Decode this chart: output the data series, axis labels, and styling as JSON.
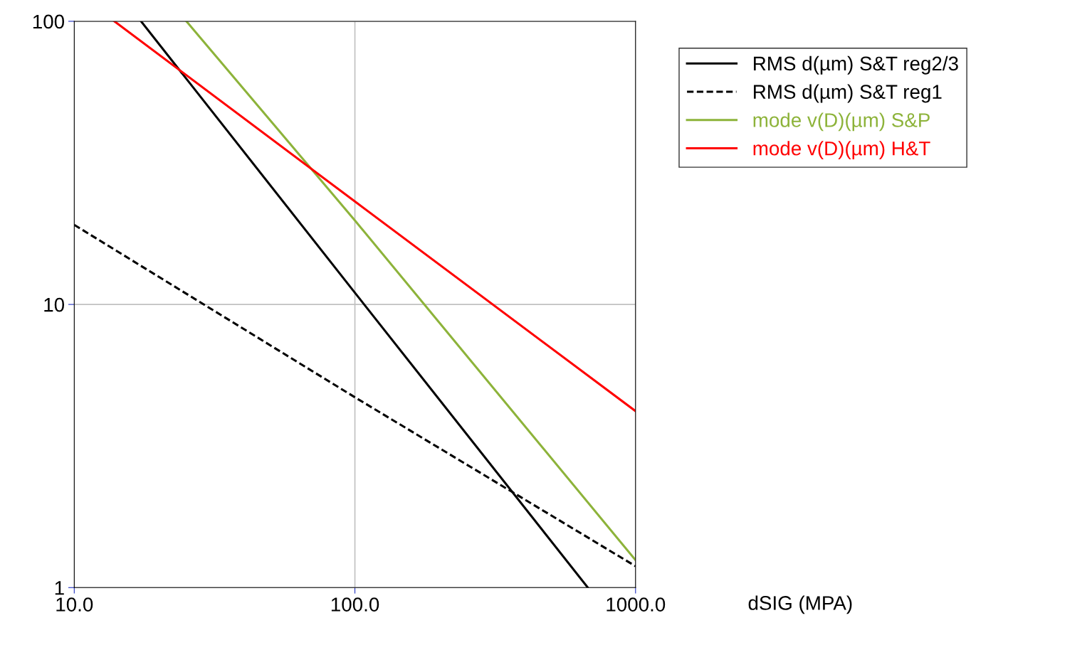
{
  "chart_data": {
    "type": "line",
    "xlabel": "dSIG (MPA)",
    "log": "xy",
    "grid": true,
    "legend": "top right",
    "line_style": "solid",
    "marker": "none",
    "xlim": [
      10,
      1000
    ],
    "ylim": [
      1,
      100
    ],
    "xticks": [
      {
        "value": 10,
        "label": "10.0"
      },
      {
        "value": 100,
        "label": "100.0"
      },
      {
        "value": 1000,
        "label": "1000.0"
      }
    ],
    "yticks": [
      1,
      10,
      100
    ],
    "series": [
      {
        "name": "RMS d(µm) S&T reg2/3",
        "color": "#000000",
        "x": [
          17.3,
          100,
          676
        ],
        "values": [
          100,
          11,
          1
        ]
      },
      {
        "name": "RMS d(µm) S&T reg1",
        "color": "#000000",
        "line_style": "dashed",
        "x": [
          10,
          100,
          1000
        ],
        "values": [
          19.1,
          4.7,
          1.19
        ]
      },
      {
        "name": "mode v(D)(µm) S&P",
        "color": "#8db33a",
        "x": [
          25.1,
          100,
          1000
        ],
        "values": [
          100,
          19.8,
          1.25
        ]
      },
      {
        "name": "mode v(D)(µm) H&T",
        "color": "#ff0000",
        "x": [
          13.9,
          100,
          1000
        ],
        "values": [
          100,
          23.1,
          4.2
        ]
      }
    ]
  }
}
